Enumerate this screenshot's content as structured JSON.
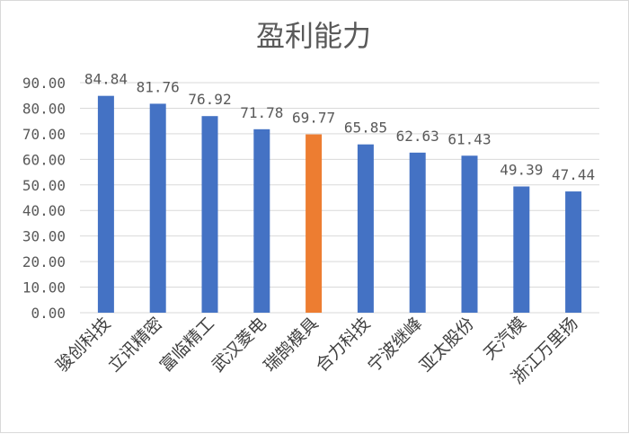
{
  "chart_data": {
    "type": "bar",
    "title": "盈利能力",
    "categories": [
      "骏创科技",
      "立讯精密",
      "富临精工",
      "武汉菱电",
      "瑞鹄模具",
      "合力科技",
      "宁波继峰",
      "亚太股份",
      "天汽模",
      "浙江万里扬"
    ],
    "values": [
      84.84,
      81.76,
      76.92,
      71.78,
      69.77,
      65.85,
      62.63,
      61.43,
      49.39,
      47.44
    ],
    "value_labels": [
      "84.84",
      "81.76",
      "76.92",
      "71.78",
      "69.77",
      "65.85",
      "62.63",
      "61.43",
      "49.39",
      "47.44"
    ],
    "y_ticks": [
      "0.00",
      "10.00",
      "20.00",
      "30.00",
      "40.00",
      "50.00",
      "60.00",
      "70.00",
      "80.00",
      "90.00"
    ],
    "ylim": [
      0,
      90
    ],
    "grid": true,
    "legend": "none",
    "colors": {
      "bar": "#4472c4",
      "highlight": "#ed7d31",
      "grid": "#d9d9d9",
      "text": "#595959"
    },
    "highlight_index": 4
  }
}
